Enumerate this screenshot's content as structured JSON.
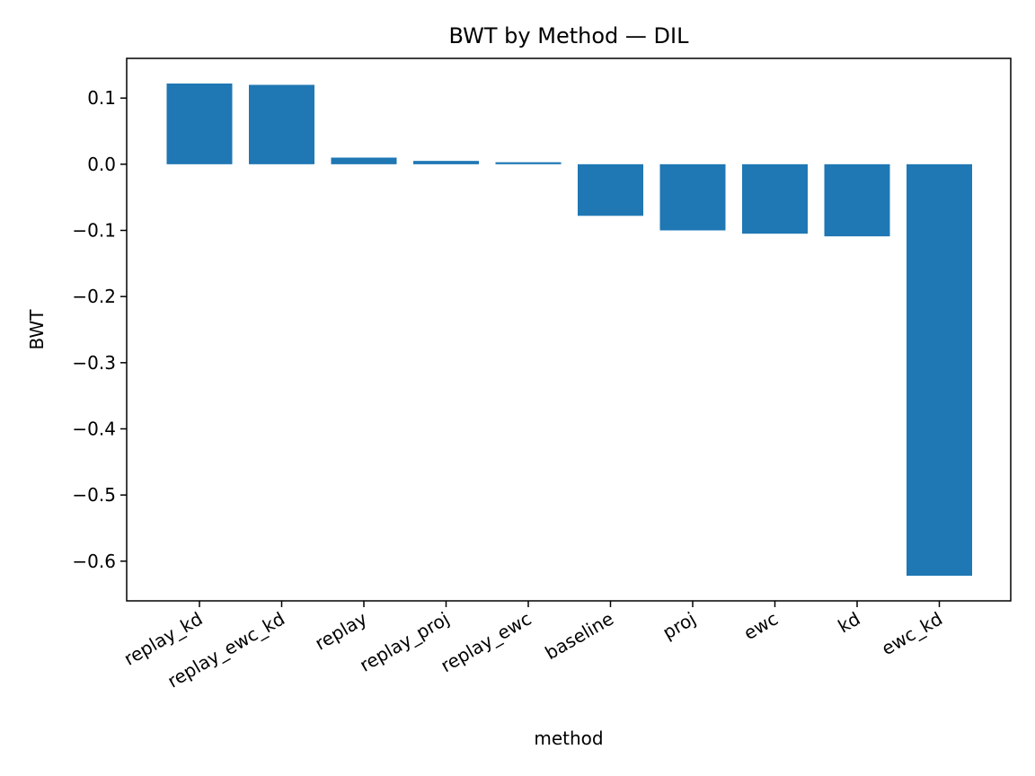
{
  "chart_data": {
    "type": "bar",
    "title": "BWT by Method — DIL",
    "xlabel": "method",
    "ylabel": "BWT",
    "categories": [
      "replay_kd",
      "replay_ewc_kd",
      "replay",
      "replay_proj",
      "replay_ewc",
      "baseline",
      "proj",
      "ewc",
      "kd",
      "ewc_kd"
    ],
    "values": [
      0.122,
      0.12,
      0.01,
      0.005,
      0.003,
      -0.078,
      -0.1,
      -0.105,
      -0.109,
      -0.622
    ],
    "ylim": [
      -0.66,
      0.16
    ],
    "yticks": [
      0.1,
      0.0,
      -0.1,
      -0.2,
      -0.3,
      -0.4,
      -0.5,
      -0.6
    ],
    "ytick_labels": [
      "0.1",
      "0.0",
      "−0.1",
      "−0.2",
      "−0.3",
      "−0.4",
      "−0.5",
      "−0.6"
    ],
    "grid": false,
    "bar_color": "#1f77b4"
  }
}
